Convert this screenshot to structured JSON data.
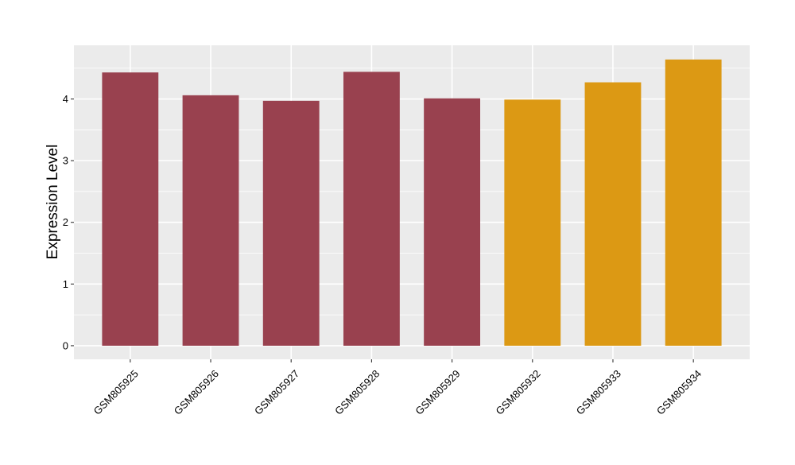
{
  "chart_data": {
    "type": "bar",
    "title": "",
    "xlabel": "",
    "ylabel": "Expression Level",
    "categories": [
      "GSM805925",
      "GSM805926",
      "GSM805927",
      "GSM805928",
      "GSM805929",
      "GSM805932",
      "GSM805933",
      "GSM805934"
    ],
    "values": [
      4.43,
      4.06,
      3.97,
      4.44,
      4.01,
      3.99,
      4.27,
      4.64
    ],
    "bar_colors": [
      "#99414F",
      "#99414F",
      "#99414F",
      "#99414F",
      "#99414F",
      "#DC9914",
      "#DC9914",
      "#DC9914"
    ],
    "ylim": [
      -0.22,
      4.87
    ],
    "yticks": [
      0,
      1,
      2,
      3,
      4
    ],
    "grid": true,
    "legend": "none",
    "panel_background": "#EBEBEB",
    "gridline_color": "#FFFFFF"
  }
}
